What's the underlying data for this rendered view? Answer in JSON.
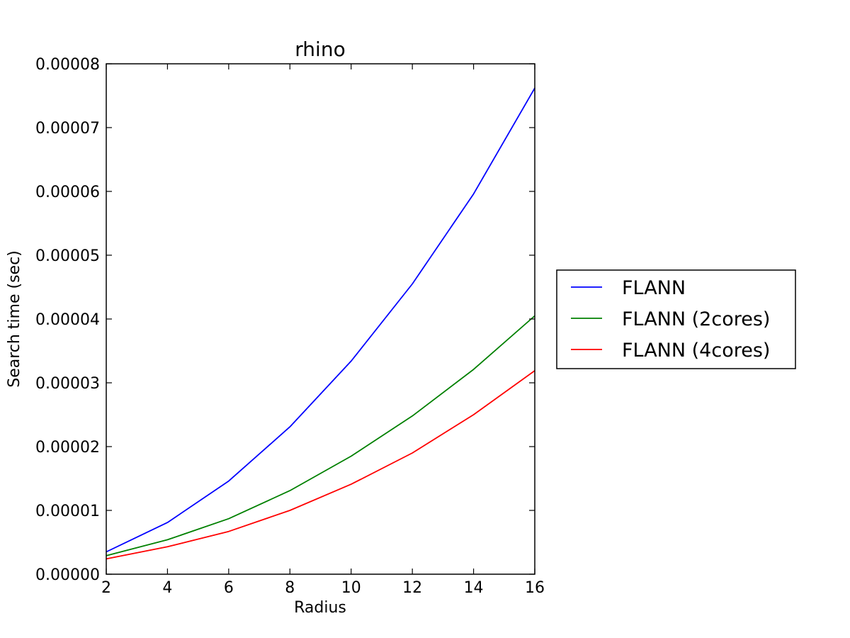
{
  "chart_data": {
    "type": "line",
    "title": "rhino",
    "xlabel": "Radius",
    "ylabel": "Search time (sec)",
    "xlim": [
      2,
      16
    ],
    "ylim": [
      0,
      8e-05
    ],
    "x_ticks": [
      2,
      4,
      6,
      8,
      10,
      12,
      14,
      16
    ],
    "x_tick_labels": [
      "2",
      "4",
      "6",
      "8",
      "10",
      "12",
      "14",
      "16"
    ],
    "y_ticks": [
      0,
      1e-05,
      2e-05,
      3e-05,
      4e-05,
      5e-05,
      6e-05,
      7e-05,
      8e-05
    ],
    "y_tick_labels": [
      "0.00000",
      "0.00001",
      "0.00002",
      "0.00003",
      "0.00004",
      "0.00005",
      "0.00006",
      "0.00007",
      "0.00008"
    ],
    "grid": false,
    "legend_position": "outside-right",
    "x": [
      2,
      4,
      6,
      8,
      10,
      12,
      14,
      16
    ],
    "series": [
      {
        "name": "FLANN",
        "color": "#0000ff",
        "values": [
          3.5e-06,
          8.1e-06,
          1.46e-05,
          2.31e-05,
          3.34e-05,
          4.55e-05,
          5.96e-05,
          7.62e-05
        ]
      },
      {
        "name": "FLANN (2cores)",
        "color": "#008000",
        "values": [
          2.9e-06,
          5.4e-06,
          8.7e-06,
          1.31e-05,
          1.85e-05,
          2.48e-05,
          3.21e-05,
          4.05e-05
        ]
      },
      {
        "name": "FLANN (4cores)",
        "color": "#ff0000",
        "values": [
          2.4e-06,
          4.3e-06,
          6.7e-06,
          1e-05,
          1.41e-05,
          1.9e-05,
          2.5e-05,
          3.19e-05
        ]
      }
    ]
  }
}
